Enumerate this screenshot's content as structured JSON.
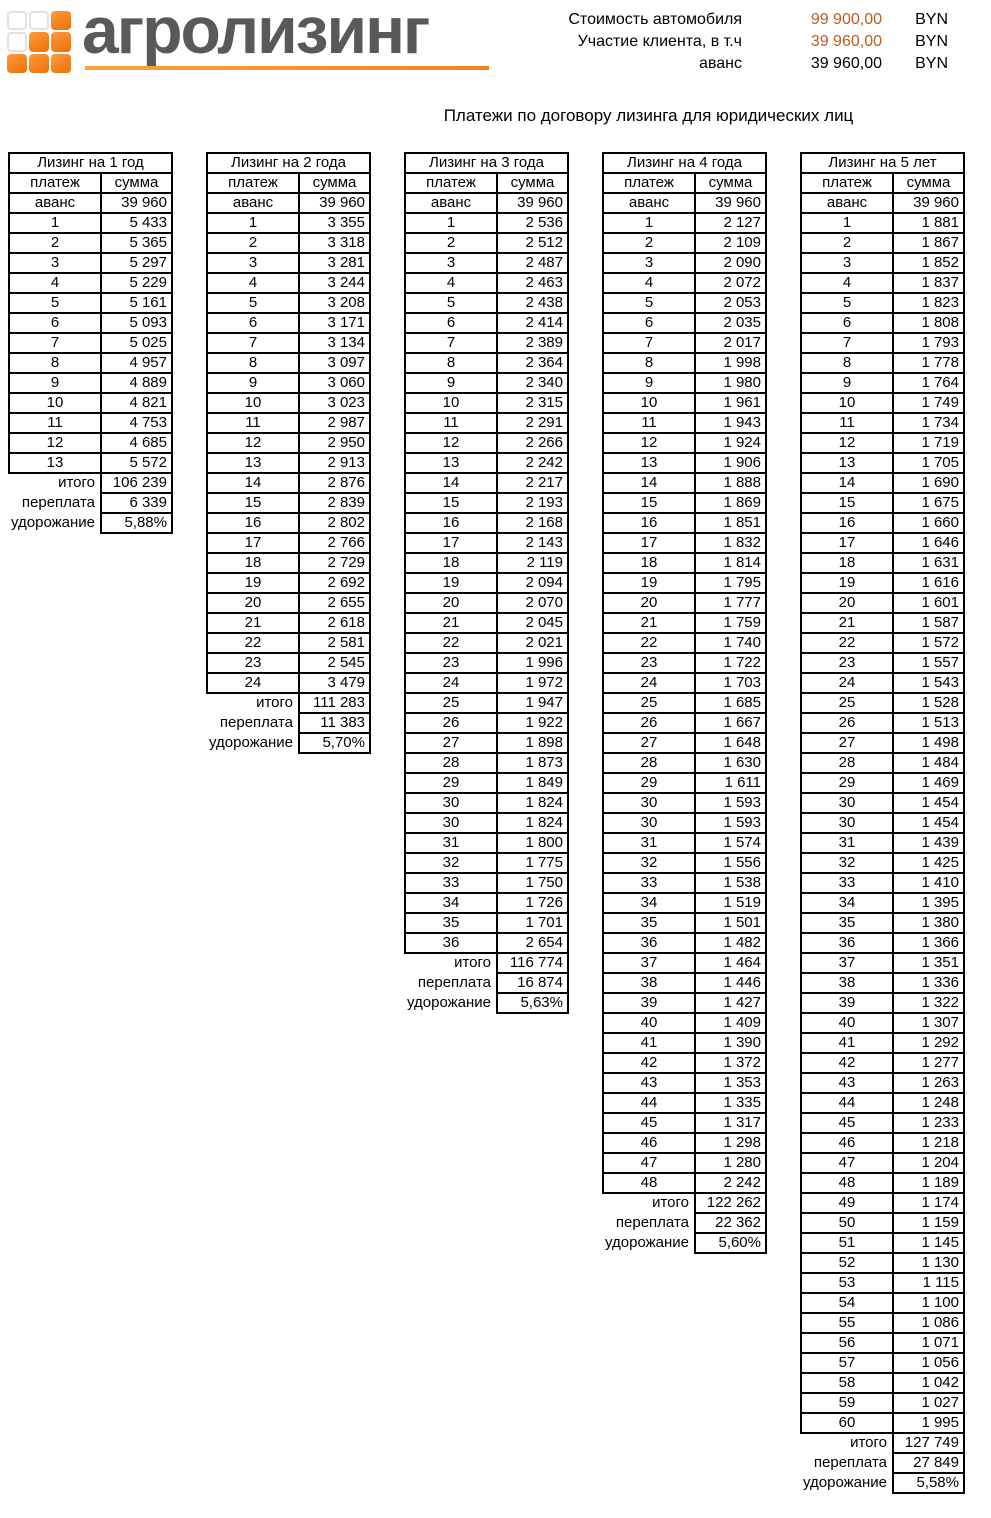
{
  "logo": {
    "text": "агролизинг",
    "grid": [
      "w",
      "w",
      "o",
      "w",
      "o",
      "o",
      "o",
      "o",
      "o"
    ]
  },
  "colors": {
    "accent_orange": "#F58220",
    "number_orange": "#C05A1E",
    "logo_gray": "#58595B"
  },
  "header": {
    "info_rows": [
      {
        "label": "Стоимость автомобиля",
        "value": "99 900,00",
        "currency": "BYN",
        "highlight": true
      },
      {
        "label": "Участие клиента, в т.ч",
        "value": "39 960,00",
        "currency": "BYN",
        "highlight": true
      },
      {
        "label": "аванс",
        "value": "39 960,00",
        "currency": "BYN",
        "highlight": false
      }
    ]
  },
  "page_title": "Платежи по договору лизинга для юридических лиц",
  "columns": {
    "payment": "платеж",
    "sum": "сумма"
  },
  "summary_labels": {
    "total": "итого",
    "overpay": "переплата",
    "rise": "удорожание"
  },
  "tables": [
    {
      "title": "Лизинг на 1 год",
      "rows": [
        [
          "аванс",
          "39 960"
        ],
        [
          "1",
          "5 433"
        ],
        [
          "2",
          "5 365"
        ],
        [
          "3",
          "5 297"
        ],
        [
          "4",
          "5 229"
        ],
        [
          "5",
          "5 161"
        ],
        [
          "6",
          "5 093"
        ],
        [
          "7",
          "5 025"
        ],
        [
          "8",
          "4 957"
        ],
        [
          "9",
          "4 889"
        ],
        [
          "10",
          "4 821"
        ],
        [
          "11",
          "4 753"
        ],
        [
          "12",
          "4 685"
        ],
        [
          "13",
          "5 572"
        ]
      ],
      "total": "106 239",
      "overpay": "6 339",
      "rise": "5,88%"
    },
    {
      "title": "Лизинг на 2 года",
      "rows": [
        [
          "аванс",
          "39 960"
        ],
        [
          "1",
          "3 355"
        ],
        [
          "2",
          "3 318"
        ],
        [
          "3",
          "3 281"
        ],
        [
          "4",
          "3 244"
        ],
        [
          "5",
          "3 208"
        ],
        [
          "6",
          "3 171"
        ],
        [
          "7",
          "3 134"
        ],
        [
          "8",
          "3 097"
        ],
        [
          "9",
          "3 060"
        ],
        [
          "10",
          "3 023"
        ],
        [
          "11",
          "2 987"
        ],
        [
          "12",
          "2 950"
        ],
        [
          "13",
          "2 913"
        ],
        [
          "14",
          "2 876"
        ],
        [
          "15",
          "2 839"
        ],
        [
          "16",
          "2 802"
        ],
        [
          "17",
          "2 766"
        ],
        [
          "18",
          "2 729"
        ],
        [
          "19",
          "2 692"
        ],
        [
          "20",
          "2 655"
        ],
        [
          "21",
          "2 618"
        ],
        [
          "22",
          "2 581"
        ],
        [
          "23",
          "2 545"
        ],
        [
          "24",
          "3 479"
        ]
      ],
      "total": "111 283",
      "overpay": "11 383",
      "rise": "5,70%"
    },
    {
      "title": "Лизинг на 3 года",
      "rows": [
        [
          "аванс",
          "39 960"
        ],
        [
          "1",
          "2 536"
        ],
        [
          "2",
          "2 512"
        ],
        [
          "3",
          "2 487"
        ],
        [
          "4",
          "2 463"
        ],
        [
          "5",
          "2 438"
        ],
        [
          "6",
          "2 414"
        ],
        [
          "7",
          "2 389"
        ],
        [
          "8",
          "2 364"
        ],
        [
          "9",
          "2 340"
        ],
        [
          "10",
          "2 315"
        ],
        [
          "11",
          "2 291"
        ],
        [
          "12",
          "2 266"
        ],
        [
          "13",
          "2 242"
        ],
        [
          "14",
          "2 217"
        ],
        [
          "15",
          "2 193"
        ],
        [
          "16",
          "2 168"
        ],
        [
          "17",
          "2 143"
        ],
        [
          "18",
          "2 119"
        ],
        [
          "19",
          "2 094"
        ],
        [
          "20",
          "2 070"
        ],
        [
          "21",
          "2 045"
        ],
        [
          "22",
          "2 021"
        ],
        [
          "23",
          "1 996"
        ],
        [
          "24",
          "1 972"
        ],
        [
          "25",
          "1 947"
        ],
        [
          "26",
          "1 922"
        ],
        [
          "27",
          "1 898"
        ],
        [
          "28",
          "1 873"
        ],
        [
          "29",
          "1 849"
        ],
        [
          "30",
          "1 824"
        ],
        [
          "30",
          "1 824"
        ],
        [
          "31",
          "1 800"
        ],
        [
          "32",
          "1 775"
        ],
        [
          "33",
          "1 750"
        ],
        [
          "34",
          "1 726"
        ],
        [
          "35",
          "1 701"
        ],
        [
          "36",
          "2 654"
        ]
      ],
      "total": "116 774",
      "overpay": "16 874",
      "rise": "5,63%"
    },
    {
      "title": "Лизинг на 4 года",
      "rows": [
        [
          "аванс",
          "39 960"
        ],
        [
          "1",
          "2 127"
        ],
        [
          "2",
          "2 109"
        ],
        [
          "3",
          "2 090"
        ],
        [
          "4",
          "2 072"
        ],
        [
          "5",
          "2 053"
        ],
        [
          "6",
          "2 035"
        ],
        [
          "7",
          "2 017"
        ],
        [
          "8",
          "1 998"
        ],
        [
          "9",
          "1 980"
        ],
        [
          "10",
          "1 961"
        ],
        [
          "11",
          "1 943"
        ],
        [
          "12",
          "1 924"
        ],
        [
          "13",
          "1 906"
        ],
        [
          "14",
          "1 888"
        ],
        [
          "15",
          "1 869"
        ],
        [
          "16",
          "1 851"
        ],
        [
          "17",
          "1 832"
        ],
        [
          "18",
          "1 814"
        ],
        [
          "19",
          "1 795"
        ],
        [
          "20",
          "1 777"
        ],
        [
          "21",
          "1 759"
        ],
        [
          "22",
          "1 740"
        ],
        [
          "23",
          "1 722"
        ],
        [
          "24",
          "1 703"
        ],
        [
          "25",
          "1 685"
        ],
        [
          "26",
          "1 667"
        ],
        [
          "27",
          "1 648"
        ],
        [
          "28",
          "1 630"
        ],
        [
          "29",
          "1 611"
        ],
        [
          "30",
          "1 593"
        ],
        [
          "30",
          "1 593"
        ],
        [
          "31",
          "1 574"
        ],
        [
          "32",
          "1 556"
        ],
        [
          "33",
          "1 538"
        ],
        [
          "34",
          "1 519"
        ],
        [
          "35",
          "1 501"
        ],
        [
          "36",
          "1 482"
        ],
        [
          "37",
          "1 464"
        ],
        [
          "38",
          "1 446"
        ],
        [
          "39",
          "1 427"
        ],
        [
          "40",
          "1 409"
        ],
        [
          "41",
          "1 390"
        ],
        [
          "42",
          "1 372"
        ],
        [
          "43",
          "1 353"
        ],
        [
          "44",
          "1 335"
        ],
        [
          "45",
          "1 317"
        ],
        [
          "46",
          "1 298"
        ],
        [
          "47",
          "1 280"
        ],
        [
          "48",
          "2 242"
        ]
      ],
      "total": "122 262",
      "overpay": "22 362",
      "rise": "5,60%"
    },
    {
      "title": "Лизинг на 5 лет",
      "rows": [
        [
          "аванс",
          "39 960"
        ],
        [
          "1",
          "1 881"
        ],
        [
          "2",
          "1 867"
        ],
        [
          "3",
          "1 852"
        ],
        [
          "4",
          "1 837"
        ],
        [
          "5",
          "1 823"
        ],
        [
          "6",
          "1 808"
        ],
        [
          "7",
          "1 793"
        ],
        [
          "8",
          "1 778"
        ],
        [
          "9",
          "1 764"
        ],
        [
          "10",
          "1 749"
        ],
        [
          "11",
          "1 734"
        ],
        [
          "12",
          "1 719"
        ],
        [
          "13",
          "1 705"
        ],
        [
          "14",
          "1 690"
        ],
        [
          "15",
          "1 675"
        ],
        [
          "16",
          "1 660"
        ],
        [
          "17",
          "1 646"
        ],
        [
          "18",
          "1 631"
        ],
        [
          "19",
          "1 616"
        ],
        [
          "20",
          "1 601"
        ],
        [
          "21",
          "1 587"
        ],
        [
          "22",
          "1 572"
        ],
        [
          "23",
          "1 557"
        ],
        [
          "24",
          "1 543"
        ],
        [
          "25",
          "1 528"
        ],
        [
          "26",
          "1 513"
        ],
        [
          "27",
          "1 498"
        ],
        [
          "28",
          "1 484"
        ],
        [
          "29",
          "1 469"
        ],
        [
          "30",
          "1 454"
        ],
        [
          "30",
          "1 454"
        ],
        [
          "31",
          "1 439"
        ],
        [
          "32",
          "1 425"
        ],
        [
          "33",
          "1 410"
        ],
        [
          "34",
          "1 395"
        ],
        [
          "35",
          "1 380"
        ],
        [
          "36",
          "1 366"
        ],
        [
          "37",
          "1 351"
        ],
        [
          "38",
          "1 336"
        ],
        [
          "39",
          "1 322"
        ],
        [
          "40",
          "1 307"
        ],
        [
          "41",
          "1 292"
        ],
        [
          "42",
          "1 277"
        ],
        [
          "43",
          "1 263"
        ],
        [
          "44",
          "1 248"
        ],
        [
          "45",
          "1 233"
        ],
        [
          "46",
          "1 218"
        ],
        [
          "47",
          "1 204"
        ],
        [
          "48",
          "1 189"
        ],
        [
          "49",
          "1 174"
        ],
        [
          "50",
          "1 159"
        ],
        [
          "51",
          "1 145"
        ],
        [
          "52",
          "1 130"
        ],
        [
          "53",
          "1 115"
        ],
        [
          "54",
          "1 100"
        ],
        [
          "55",
          "1 086"
        ],
        [
          "56",
          "1 071"
        ],
        [
          "57",
          "1 056"
        ],
        [
          "58",
          "1 042"
        ],
        [
          "59",
          "1 027"
        ],
        [
          "60",
          "1 995"
        ]
      ],
      "total": "127 749",
      "overpay": "27 849",
      "rise": "5,58%"
    }
  ]
}
